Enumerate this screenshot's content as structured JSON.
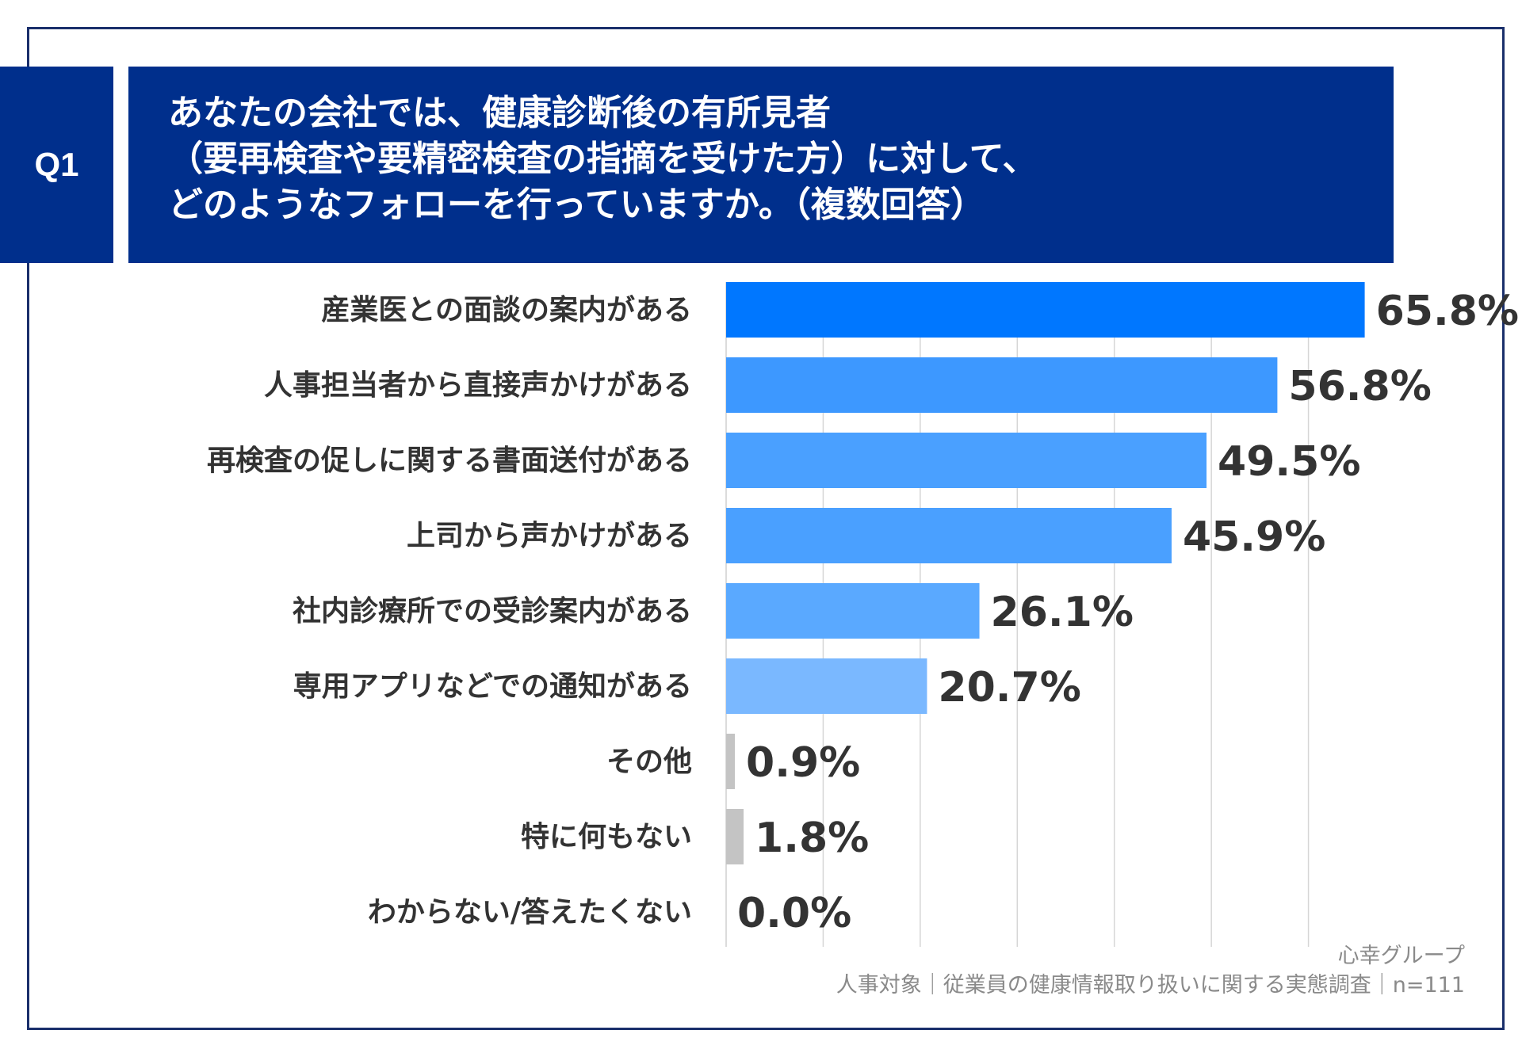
{
  "question": {
    "number": "Q1",
    "lines": [
      "あなたの会社では、健康診断後の有所見者",
      "（要再検査や要精密検査の指摘を受けた方）に対して、",
      "どのようなフォローを行っていますか。（複数回答）"
    ]
  },
  "colors": {
    "frame": "#1a2f6b",
    "header_bg": "#002f8c",
    "bar_primary": "#0077ff",
    "bar_gray": "#c4c4c4",
    "gridline": "#d6d6d6"
  },
  "chart_data": {
    "type": "bar",
    "orientation": "horizontal",
    "categories": [
      "産業医との面談の案内がある",
      "人事担当者から直接声かけがある",
      "再検査の促しに関する書面送付がある",
      "上司から声かけがある",
      "社内診療所での受診案内がある",
      "専用アプリなどでの通知がある",
      "その他",
      "特に何もない",
      "わからない/答えたくない"
    ],
    "values": [
      65.8,
      56.8,
      49.5,
      45.9,
      26.1,
      20.7,
      0.9,
      1.8,
      0.0
    ],
    "value_labels": [
      "65.8%",
      "56.8%",
      "49.5%",
      "45.9%",
      "26.1%",
      "20.7%",
      "0.9%",
      "1.8%",
      "0.0%"
    ],
    "bar_colors": [
      "#0077ff",
      "#3d98ff",
      "#4aa0ff",
      "#4aa0ff",
      "#5aa9ff",
      "#7ab8ff",
      "#c4c4c4",
      "#c4c4c4",
      "#c4c4c4"
    ],
    "xlim": [
      0,
      70
    ],
    "grid": true,
    "unit": "%"
  },
  "source": {
    "line1": "心幸グループ",
    "line2": "人事対象｜従業員の健康情報取り扱いに関する実態調査｜n=111"
  }
}
